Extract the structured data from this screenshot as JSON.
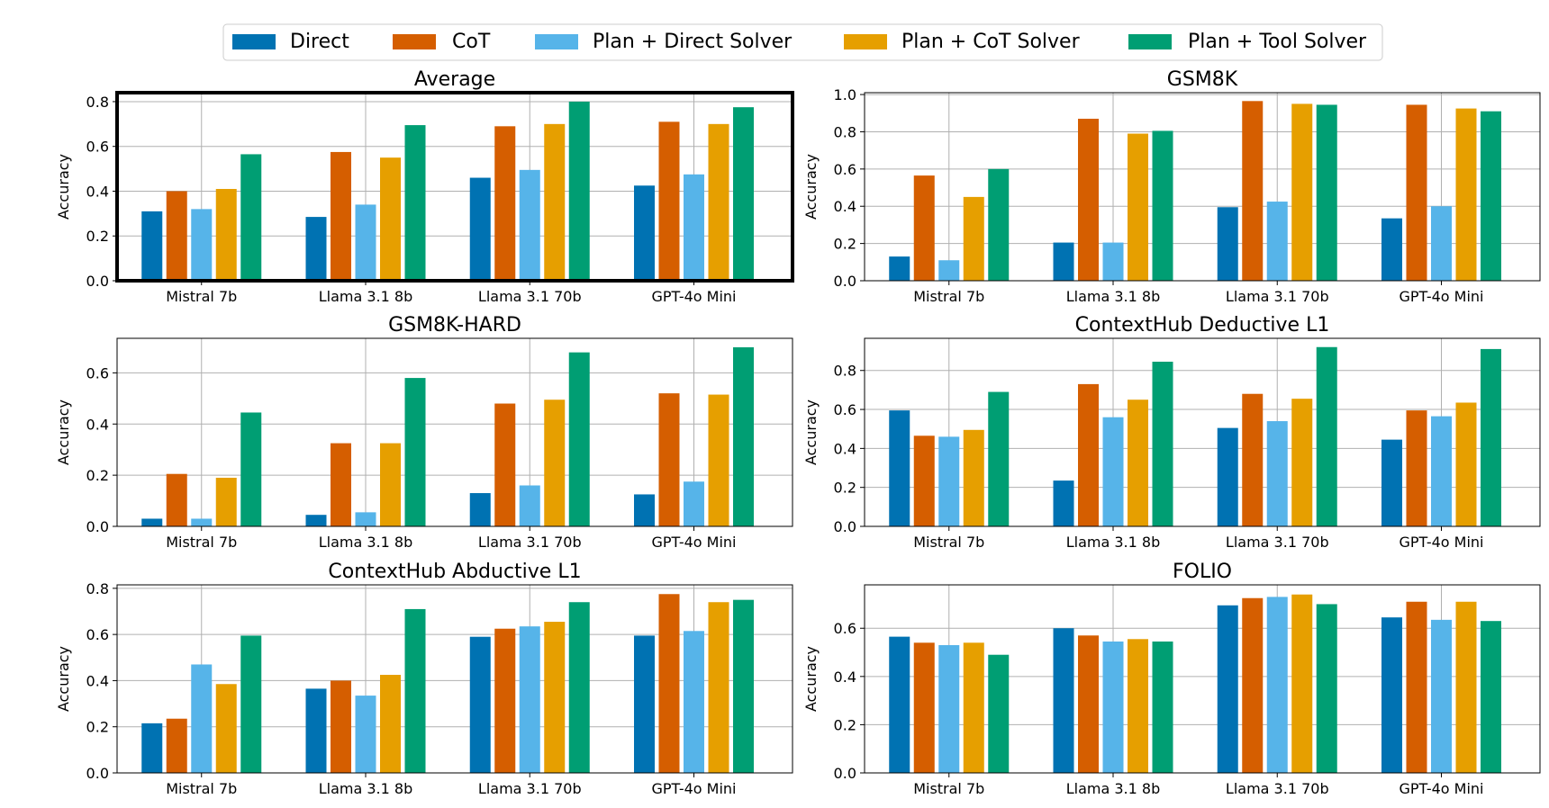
{
  "colors": {
    "Direct": "#0072b2",
    "CoT": "#d55e00",
    "Plan + Direct Solver": "#56b4e9",
    "Plan + CoT Solver": "#e69f00",
    "Plan + Tool Solver": "#009e73"
  },
  "legend": [
    "Direct",
    "CoT",
    "Plan + Direct Solver",
    "Plan + CoT Solver",
    "Plan + Tool Solver"
  ],
  "chart_data": [
    {
      "type": "bar",
      "title": "Average",
      "ylabel": "Accuracy",
      "xlabel": "",
      "ylim": [
        0,
        0.84
      ],
      "yticks": [
        "0.0",
        "0.2",
        "0.4",
        "0.6",
        "0.8"
      ],
      "highlighted": true,
      "grid": true,
      "categories": [
        "Mistral 7b",
        "Llama 3.1 8b",
        "Llama 3.1 70b",
        "GPT-4o Mini"
      ],
      "series": [
        {
          "name": "Direct",
          "values": [
            0.31,
            0.285,
            0.46,
            0.425
          ]
        },
        {
          "name": "CoT",
          "values": [
            0.4,
            0.575,
            0.69,
            0.71
          ]
        },
        {
          "name": "Plan + Direct Solver",
          "values": [
            0.32,
            0.34,
            0.495,
            0.475
          ]
        },
        {
          "name": "Plan + CoT Solver",
          "values": [
            0.41,
            0.55,
            0.7,
            0.7
          ]
        },
        {
          "name": "Plan + Tool Solver",
          "values": [
            0.565,
            0.695,
            0.8,
            0.775
          ]
        }
      ]
    },
    {
      "type": "bar",
      "title": "GSM8K",
      "ylabel": "Accuracy",
      "xlabel": "",
      "ylim": [
        0,
        1.01
      ],
      "yticks": [
        "0.0",
        "0.2",
        "0.4",
        "0.6",
        "0.8",
        "1.0"
      ],
      "highlighted": false,
      "grid": true,
      "categories": [
        "Mistral 7b",
        "Llama 3.1 8b",
        "Llama 3.1 70b",
        "GPT-4o Mini"
      ],
      "series": [
        {
          "name": "Direct",
          "values": [
            0.13,
            0.205,
            0.395,
            0.335
          ]
        },
        {
          "name": "CoT",
          "values": [
            0.565,
            0.87,
            0.965,
            0.945
          ]
        },
        {
          "name": "Plan + Direct Solver",
          "values": [
            0.11,
            0.205,
            0.425,
            0.4
          ]
        },
        {
          "name": "Plan + CoT Solver",
          "values": [
            0.45,
            0.79,
            0.95,
            0.925
          ]
        },
        {
          "name": "Plan + Tool Solver",
          "values": [
            0.6,
            0.805,
            0.945,
            0.91
          ]
        }
      ]
    },
    {
      "type": "bar",
      "title": "GSM8K-HARD",
      "ylabel": "Accuracy",
      "xlabel": "",
      "ylim": [
        0,
        0.735
      ],
      "yticks": [
        "0.0",
        "0.2",
        "0.4",
        "0.6"
      ],
      "highlighted": false,
      "grid": true,
      "categories": [
        "Mistral 7b",
        "Llama 3.1 8b",
        "Llama 3.1 70b",
        "GPT-4o Mini"
      ],
      "series": [
        {
          "name": "Direct",
          "values": [
            0.03,
            0.045,
            0.13,
            0.125
          ]
        },
        {
          "name": "CoT",
          "values": [
            0.205,
            0.325,
            0.48,
            0.52
          ]
        },
        {
          "name": "Plan + Direct Solver",
          "values": [
            0.03,
            0.055,
            0.16,
            0.175
          ]
        },
        {
          "name": "Plan + CoT Solver",
          "values": [
            0.19,
            0.325,
            0.495,
            0.515
          ]
        },
        {
          "name": "Plan + Tool Solver",
          "values": [
            0.445,
            0.58,
            0.68,
            0.7
          ]
        }
      ]
    },
    {
      "type": "bar",
      "title": "ContextHub Deductive L1",
      "ylabel": "Accuracy",
      "xlabel": "",
      "ylim": [
        0,
        0.965
      ],
      "yticks": [
        "0.0",
        "0.2",
        "0.4",
        "0.6",
        "0.8"
      ],
      "highlighted": false,
      "grid": true,
      "categories": [
        "Mistral 7b",
        "Llama 3.1 8b",
        "Llama 3.1 70b",
        "GPT-4o Mini"
      ],
      "series": [
        {
          "name": "Direct",
          "values": [
            0.595,
            0.235,
            0.505,
            0.445
          ]
        },
        {
          "name": "CoT",
          "values": [
            0.465,
            0.73,
            0.68,
            0.595
          ]
        },
        {
          "name": "Plan + Direct Solver",
          "values": [
            0.46,
            0.56,
            0.54,
            0.565
          ]
        },
        {
          "name": "Plan + CoT Solver",
          "values": [
            0.495,
            0.65,
            0.655,
            0.635
          ]
        },
        {
          "name": "Plan + Tool Solver",
          "values": [
            0.69,
            0.845,
            0.92,
            0.91
          ]
        }
      ]
    },
    {
      "type": "bar",
      "title": "ContextHub Abductive L1",
      "ylabel": "Accuracy",
      "xlabel": "",
      "ylim": [
        0,
        0.815
      ],
      "yticks": [
        "0.0",
        "0.2",
        "0.4",
        "0.6",
        "0.8"
      ],
      "highlighted": false,
      "grid": true,
      "categories": [
        "Mistral 7b",
        "Llama 3.1 8b",
        "Llama 3.1 70b",
        "GPT-4o Mini"
      ],
      "series": [
        {
          "name": "Direct",
          "values": [
            0.215,
            0.365,
            0.59,
            0.595
          ]
        },
        {
          "name": "CoT",
          "values": [
            0.235,
            0.4,
            0.625,
            0.775
          ]
        },
        {
          "name": "Plan + Direct Solver",
          "values": [
            0.47,
            0.335,
            0.635,
            0.615
          ]
        },
        {
          "name": "Plan + CoT Solver",
          "values": [
            0.385,
            0.425,
            0.655,
            0.74
          ]
        },
        {
          "name": "Plan + Tool Solver",
          "values": [
            0.595,
            0.71,
            0.74,
            0.75
          ]
        }
      ]
    },
    {
      "type": "bar",
      "title": "FOLIO",
      "ylabel": "Accuracy",
      "xlabel": "",
      "ylim": [
        0,
        0.78
      ],
      "yticks": [
        "0.0",
        "0.2",
        "0.4",
        "0.6"
      ],
      "highlighted": false,
      "grid": true,
      "categories": [
        "Mistral 7b",
        "Llama 3.1 8b",
        "Llama 3.1 70b",
        "GPT-4o Mini"
      ],
      "series": [
        {
          "name": "Direct",
          "values": [
            0.565,
            0.6,
            0.695,
            0.645
          ]
        },
        {
          "name": "CoT",
          "values": [
            0.54,
            0.57,
            0.725,
            0.71
          ]
        },
        {
          "name": "Plan + Direct Solver",
          "values": [
            0.53,
            0.545,
            0.73,
            0.635
          ]
        },
        {
          "name": "Plan + CoT Solver",
          "values": [
            0.54,
            0.555,
            0.74,
            0.71
          ]
        },
        {
          "name": "Plan + Tool Solver",
          "values": [
            0.49,
            0.545,
            0.7,
            0.63
          ]
        }
      ]
    }
  ]
}
